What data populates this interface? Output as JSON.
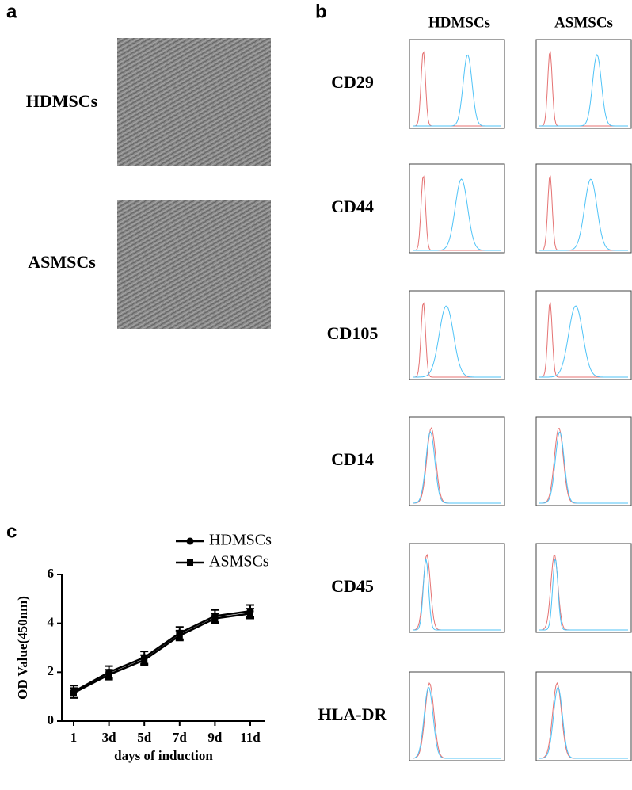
{
  "panels": {
    "a": {
      "label": "a",
      "rows": [
        "HDMSCs",
        "ASMSCs"
      ]
    },
    "b": {
      "label": "b",
      "columns": [
        "HDMSCs",
        "ASMSCs"
      ],
      "rows": [
        "CD29",
        "CD44",
        "CD105",
        "CD14",
        "CD45",
        "HLA-DR"
      ]
    }
  },
  "chart_data": {
    "type": "line",
    "label": "c",
    "x_label": "days of induction",
    "y_label": "OD Value(450nm)",
    "categories": [
      "1",
      "3d",
      "5d",
      "7d",
      "9d",
      "11d"
    ],
    "series": [
      {
        "name": "HDMSCs",
        "color": "#000000",
        "marker": "circle",
        "values": [
          1.2,
          2.0,
          2.6,
          3.6,
          4.3,
          4.5
        ],
        "errors": [
          0.25,
          0.25,
          0.25,
          0.25,
          0.25,
          0.25
        ]
      },
      {
        "name": "ASMSCs",
        "color": "#000000",
        "marker": "square",
        "values": [
          1.15,
          1.9,
          2.5,
          3.5,
          4.2,
          4.4
        ],
        "errors": [
          0.2,
          0.2,
          0.2,
          0.2,
          0.2,
          0.2
        ]
      }
    ],
    "ylim": [
      0,
      6
    ],
    "yticks": [
      0,
      2,
      4,
      6
    ]
  }
}
